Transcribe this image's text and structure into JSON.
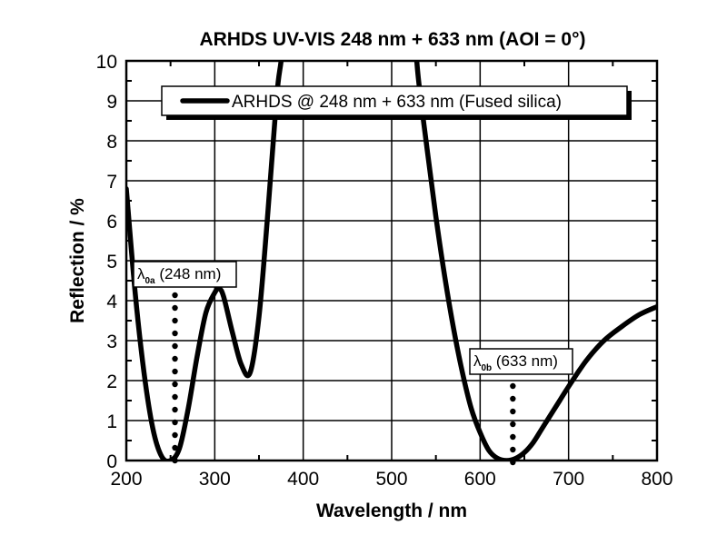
{
  "chart_data": {
    "type": "line",
    "title": "ARHDS UV-VIS 248 nm + 633 nm (AOI = 0°)",
    "xlabel": "Wavelength / nm",
    "ylabel": "Reflection / %",
    "xlim": [
      200,
      800
    ],
    "ylim": [
      0,
      10
    ],
    "xticks": [
      200,
      300,
      400,
      500,
      600,
      700,
      800
    ],
    "yticks": [
      0,
      1,
      2,
      3,
      4,
      5,
      6,
      7,
      8,
      9,
      10
    ],
    "grid": true,
    "legend": {
      "position": "top-center",
      "entries": [
        "ARHDS @ 248 nm + 633 nm (Fused silica)"
      ]
    },
    "series": [
      {
        "name": "ARHDS @ 248 nm + 633 nm (Fused silica)",
        "x": [
          200,
          210,
          220,
          230,
          240,
          250,
          260,
          270,
          280,
          290,
          300,
          305,
          310,
          320,
          330,
          340,
          350,
          360,
          370,
          375,
          380,
          525,
          530,
          540,
          550,
          560,
          570,
          580,
          590,
          600,
          610,
          620,
          630,
          640,
          650,
          660,
          670,
          680,
          690,
          700,
          720,
          740,
          760,
          780,
          800
        ],
        "y": [
          6.8,
          4.2,
          2.2,
          0.8,
          0.1,
          0.0,
          0.3,
          1.3,
          2.6,
          3.7,
          4.2,
          4.3,
          4.1,
          3.2,
          2.4,
          2.2,
          3.6,
          6.2,
          9.1,
          10.0,
          11.0,
          11.0,
          9.6,
          7.8,
          6.1,
          4.6,
          3.3,
          2.2,
          1.3,
          0.7,
          0.25,
          0.05,
          0.0,
          0.05,
          0.2,
          0.45,
          0.8,
          1.15,
          1.5,
          1.85,
          2.5,
          3.0,
          3.35,
          3.65,
          3.85
        ]
      }
    ],
    "annotations": [
      {
        "symbol": "λ",
        "subscript": "0a",
        "text": "(248 nm)",
        "x": 255,
        "marker": "dotted-vertical-line"
      },
      {
        "symbol": "λ",
        "subscript": "0b",
        "text": "(633 nm)",
        "x": 637,
        "marker": "dotted-vertical-line"
      }
    ]
  },
  "labels": {
    "title": "ARHDS UV-VIS 248 nm + 633 nm (AOI = 0°)",
    "xlabel": "Wavelength / nm",
    "ylabel": "Reflection / %",
    "legend": "ARHDS @ 248 nm + 633 nm (Fused silica)",
    "anno_a_symbol": "λ",
    "anno_a_sub": "0a",
    "anno_a_text": " (248 nm)",
    "anno_b_symbol": "λ",
    "anno_b_sub": "0b",
    "anno_b_text": " (633 nm)"
  },
  "colors": {
    "line": "#000000",
    "grid": "#000000",
    "background": "#ffffff"
  }
}
